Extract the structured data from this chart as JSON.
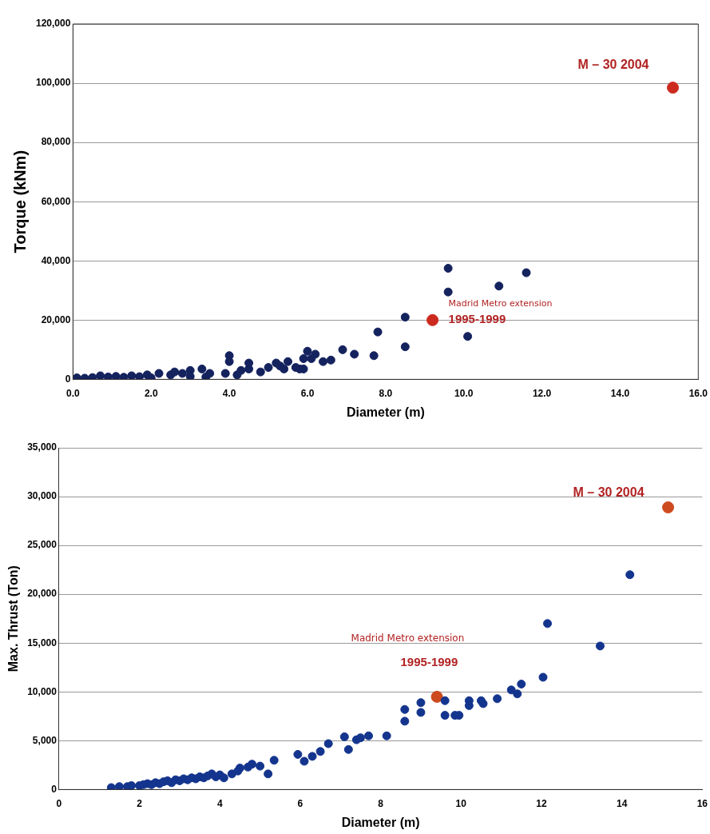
{
  "chart_data": [
    {
      "type": "scatter",
      "xlabel": "Diameter (m)",
      "ylabel": "Torque (kNm)",
      "xlim": [
        0,
        16
      ],
      "ylim": [
        0,
        120000
      ],
      "xticks": [
        {
          "value": 0,
          "label": "0.0"
        },
        {
          "value": 2,
          "label": "2.0"
        },
        {
          "value": 4,
          "label": "4.0"
        },
        {
          "value": 6,
          "label": "6.0"
        },
        {
          "value": 8,
          "label": "8.0"
        },
        {
          "value": 10,
          "label": "10.0"
        },
        {
          "value": 12,
          "label": "12.0"
        },
        {
          "value": 14,
          "label": "14.0"
        },
        {
          "value": 16,
          "label": "16.0"
        }
      ],
      "yticks": [
        {
          "value": 0,
          "label": "0"
        },
        {
          "value": 20000,
          "label": "20,000"
        },
        {
          "value": 40000,
          "label": "40,000"
        },
        {
          "value": 60000,
          "label": "60,000"
        },
        {
          "value": 80000,
          "label": "80,000"
        },
        {
          "value": 100000,
          "label": "100,000"
        },
        {
          "value": 120000,
          "label": "120,000"
        }
      ],
      "grid": "y",
      "marker": "circle",
      "series": [
        {
          "color": "#14225e",
          "x": [
            0.1,
            0.3,
            0.5,
            0.7,
            0.9,
            1.1,
            1.3,
            1.5,
            1.7,
            1.9,
            2.0,
            2.2,
            2.5,
            2.6,
            2.8,
            3.0,
            3.0,
            3.3,
            3.4,
            3.5,
            3.9,
            4.0,
            4.0,
            4.2,
            4.3,
            4.5,
            4.5,
            4.8,
            5.0,
            5.2,
            5.3,
            5.5,
            5.4,
            5.7,
            5.8,
            6.0,
            6.1,
            6.2,
            5.9,
            5.9,
            6.4,
            6.6,
            6.9,
            7.2,
            7.7,
            7.8,
            8.5,
            8.5,
            9.6,
            9.6,
            10.1,
            10.9,
            11.6
          ],
          "values": [
            500,
            400,
            600,
            1200,
            800,
            1000,
            700,
            1200,
            900,
            1500,
            500,
            2000,
            1500,
            2500,
            2000,
            3000,
            1000,
            3500,
            800,
            2000,
            2000,
            8000,
            6000,
            1500,
            3000,
            5500,
            3500,
            2500,
            4000,
            5500,
            4500,
            6000,
            3500,
            4000,
            3500,
            9500,
            7000,
            8500,
            7000,
            3500,
            6000,
            6500,
            10000,
            8500,
            8000,
            16000,
            21000,
            11000,
            37500,
            29500,
            14500,
            31500,
            36000
          ]
        },
        {
          "color": "#cc2a1e",
          "x": [
            9.2,
            15.35
          ],
          "values": [
            20000,
            98500
          ]
        }
      ],
      "annotations": [
        {
          "text": "M – 30 2004",
          "x": 15.35,
          "y": 98500
        },
        {
          "text": "Madrid Metro extension",
          "x": 9.2,
          "y": 20000
        },
        {
          "text": "1995-1999",
          "x": 9.2,
          "y": 20000
        }
      ]
    },
    {
      "type": "scatter",
      "xlabel": "Diameter (m)",
      "ylabel": "Max. Thrust (Ton)",
      "xlim": [
        0,
        16
      ],
      "ylim": [
        0,
        35000
      ],
      "xticks": [
        0,
        2,
        4,
        6,
        8,
        10,
        12,
        14,
        16
      ],
      "yticks": [
        {
          "value": 0,
          "label": "0"
        },
        {
          "value": 5000,
          "label": "5,000"
        },
        {
          "value": 10000,
          "label": "10,000"
        },
        {
          "value": 15000,
          "label": "15,000"
        },
        {
          "value": 20000,
          "label": "20,000"
        },
        {
          "value": 25000,
          "label": "25,000"
        },
        {
          "value": 30000,
          "label": "30,000"
        },
        {
          "value": 35000,
          "label": "35,000"
        }
      ],
      "grid": "y",
      "marker": "circle",
      "series": [
        {
          "color": "#14358e",
          "x": [
            1.3,
            1.5,
            1.7,
            1.8,
            2.0,
            2.1,
            2.2,
            2.3,
            2.4,
            2.5,
            2.6,
            2.7,
            2.8,
            2.9,
            3.0,
            3.1,
            3.2,
            3.3,
            3.4,
            3.5,
            3.6,
            3.7,
            3.8,
            3.9,
            4.0,
            4.1,
            4.3,
            4.45,
            4.5,
            4.7,
            4.8,
            5.0,
            5.2,
            5.35,
            5.94,
            6.1,
            6.3,
            6.5,
            6.7,
            7.1,
            7.2,
            7.4,
            7.5,
            7.7,
            8.15,
            8.6,
            8.6,
            9.0,
            9.0,
            9.6,
            9.6,
            9.85,
            9.95,
            10.2,
            10.2,
            10.5,
            10.55,
            10.9,
            11.25,
            11.4,
            11.5,
            12.04,
            12.15,
            13.46,
            14.2
          ],
          "values": [
            200,
            300,
            300,
            400,
            400,
            500,
            600,
            500,
            700,
            600,
            800,
            900,
            700,
            1000,
            900,
            1100,
            1000,
            1200,
            1100,
            1300,
            1200,
            1400,
            1600,
            1300,
            1500,
            1200,
            1600,
            1900,
            2200,
            2300,
            2600,
            2400,
            1600,
            3000,
            3600,
            2900,
            3400,
            3900,
            4700,
            5400,
            4100,
            5100,
            5300,
            5500,
            5500,
            8200,
            7000,
            8900,
            7900,
            9100,
            7600,
            7600,
            7600,
            9100,
            8600,
            9100,
            8800,
            9300,
            10200,
            9800,
            10800,
            11500,
            17000,
            14700,
            22000
          ]
        },
        {
          "color": "#cc4a1e",
          "x": [
            9.4,
            15.15
          ],
          "values": [
            9500,
            28900
          ]
        }
      ],
      "annotations": [
        {
          "text": "M – 30 2004",
          "x": 15.15,
          "y": 28900
        },
        "Madrid Metro extension",
        "1995-1999"
      ]
    }
  ]
}
